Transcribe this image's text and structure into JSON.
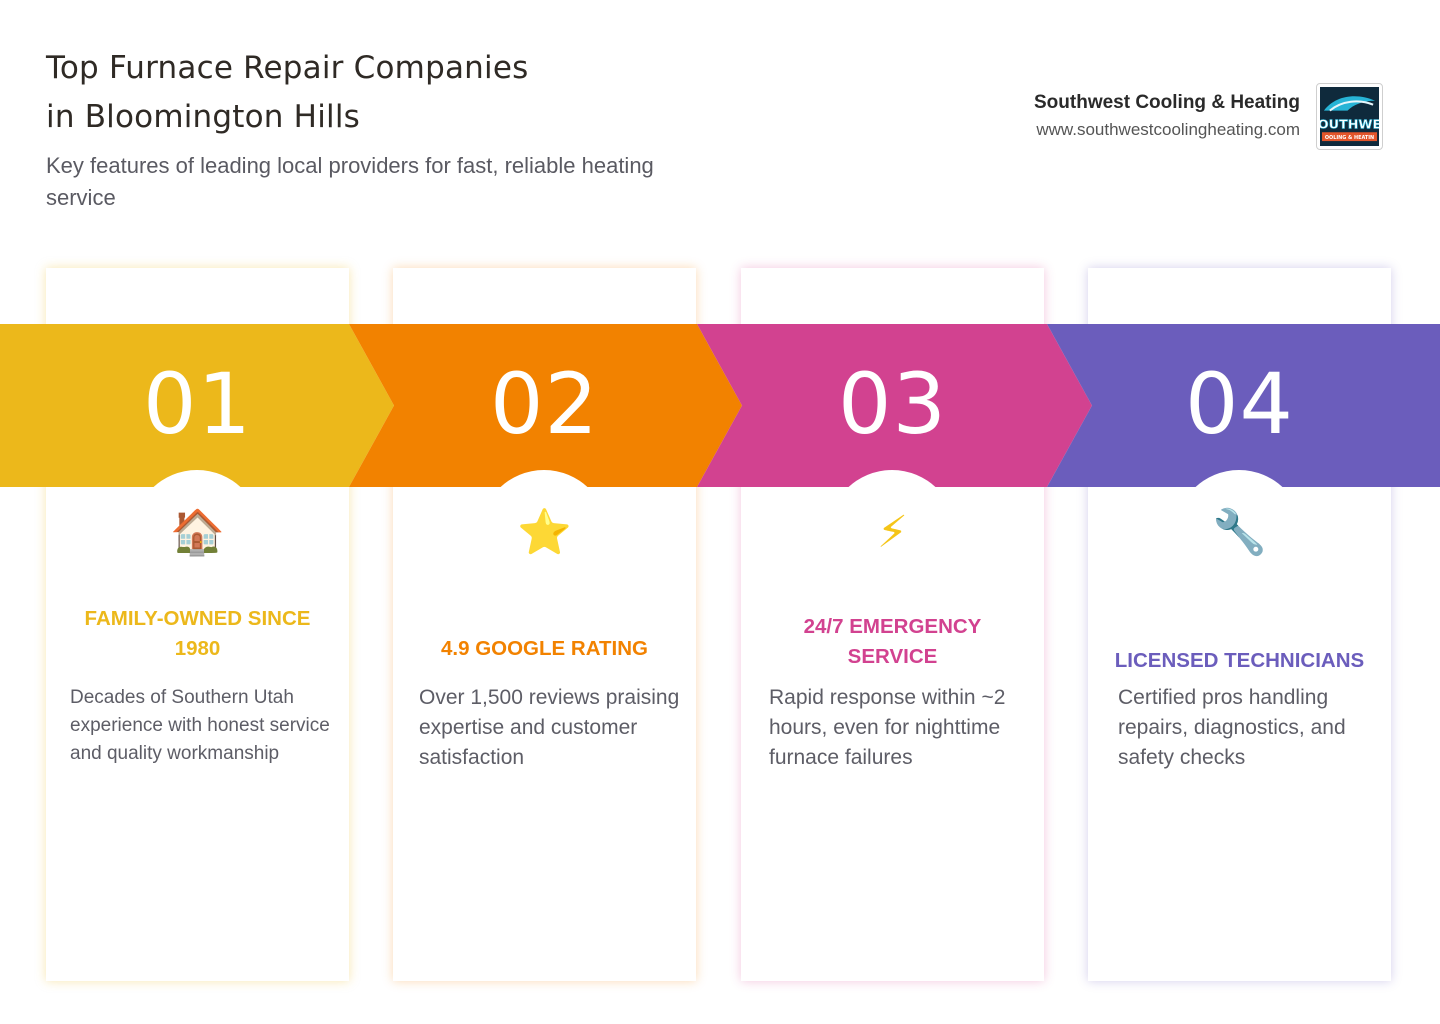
{
  "header": {
    "title_line1": "Top Furnace Repair Companies",
    "title_line2": "in Bloomington Hills",
    "subtitle": "Key features of leading local providers for fast, reliable heating service"
  },
  "brand": {
    "name": "Southwest Cooling & Heating",
    "url": "www.southwestcoolingheating.com",
    "logo_text": "SOUTHWEST",
    "logo_subtext": "COOLING & HEATING"
  },
  "colors": {
    "step1": "#ECB81B",
    "step2": "#F28200",
    "step3": "#D24290",
    "step4": "#6B5DBC"
  },
  "steps": [
    {
      "number": "01",
      "icon": "house-icon",
      "glyph": "🏠",
      "label": "FAMILY-OWNED SINCE 1980",
      "description": "Decades of Southern Utah experience with honest service and quality workmanship"
    },
    {
      "number": "02",
      "icon": "star-icon",
      "glyph": "⭐",
      "label": "4.9 GOOGLE RATING",
      "description": "Over 1,500 reviews praising expertise and customer satisfaction"
    },
    {
      "number": "03",
      "icon": "lightning-icon",
      "glyph": "⚡",
      "label": "24/7 EMERGENCY SERVICE",
      "description": "Rapid response within ~2 hours, even for nighttime furnace failures"
    },
    {
      "number": "04",
      "icon": "wrench-icon",
      "glyph": "🔧",
      "label": "LICENSED TECHNICIANS",
      "description": "Certified pros handling repairs, diagnostics, and safety checks"
    }
  ]
}
